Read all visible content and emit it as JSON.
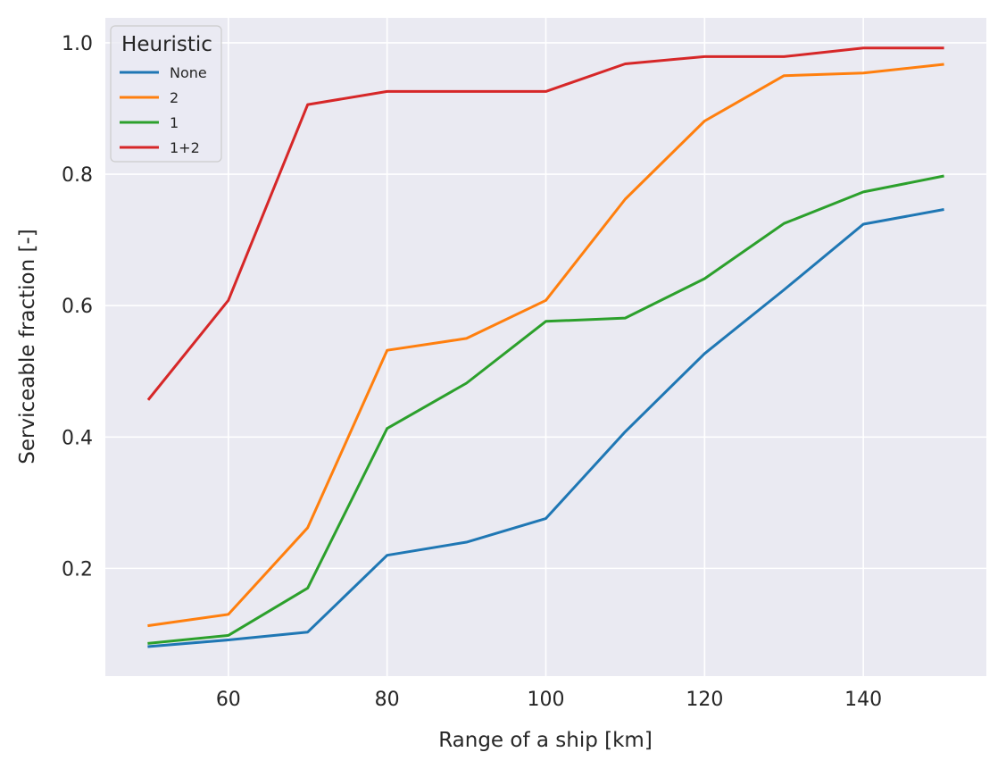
{
  "chart_data": {
    "type": "line",
    "title": "",
    "xlabel": "Range of a ship [km]",
    "ylabel": "Serviceable fraction [-]",
    "xlim": [
      44.5,
      155.5
    ],
    "ylim": [
      0.036,
      1.038
    ],
    "xticks": [
      60,
      80,
      100,
      120,
      140
    ],
    "yticks": [
      0.2,
      0.4,
      0.6,
      0.8,
      1.0
    ],
    "ytick_labels": [
      "0.2",
      "0.4",
      "0.6",
      "0.8",
      "1.0"
    ],
    "grid": true,
    "background": "#eaeaf2",
    "legend": {
      "title": "Heuristic",
      "placement": "top-left"
    },
    "x": [
      50,
      60,
      70,
      80,
      90,
      100,
      110,
      120,
      130,
      140,
      150
    ],
    "series": [
      {
        "name": "None",
        "color": "#1f77b4",
        "values": [
          0.081,
          0.091,
          0.103,
          0.22,
          0.24,
          0.276,
          0.408,
          0.527,
          0.624,
          0.724,
          0.746
        ]
      },
      {
        "name": "2",
        "color": "#ff7f0e",
        "values": [
          0.113,
          0.13,
          0.262,
          0.532,
          0.55,
          0.608,
          0.762,
          0.881,
          0.95,
          0.954,
          0.967
        ]
      },
      {
        "name": "1",
        "color": "#2ca02c",
        "values": [
          0.086,
          0.098,
          0.17,
          0.413,
          0.482,
          0.576,
          0.581,
          0.641,
          0.725,
          0.773,
          0.797
        ]
      },
      {
        "name": "1+2",
        "color": "#d62728",
        "values": [
          0.458,
          0.608,
          0.906,
          0.926,
          0.926,
          0.926,
          0.968,
          0.979,
          0.979,
          0.992,
          0.992
        ]
      }
    ]
  }
}
